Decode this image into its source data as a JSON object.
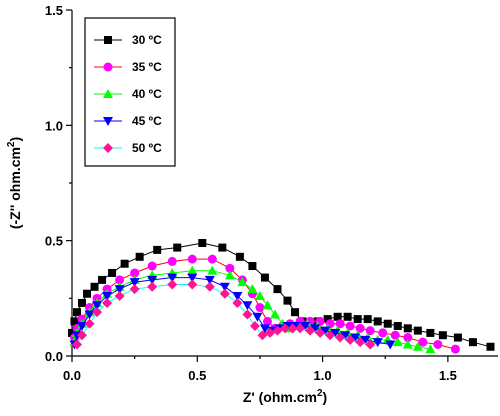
{
  "chart_data": {
    "type": "scatter",
    "title": "",
    "xlabel_base": "Z' (ohm.cm",
    "xlabel_sup": "2",
    "xlabel_end": ")",
    "ylabel_base": "(-Z'' ohm.cm",
    "ylabel_sup": "2",
    "ylabel_end": ")",
    "xlim": [
      0,
      1.7
    ],
    "ylim": [
      0,
      1.5
    ],
    "xticks": [
      0.0,
      0.5,
      1.0,
      1.5
    ],
    "xtick_labels": [
      "0.0",
      "0.5",
      "1.0",
      "1.5"
    ],
    "yticks": [
      0.0,
      0.5,
      1.0,
      1.5
    ],
    "ytick_labels": [
      "0.0",
      "0.5",
      "1.0",
      "1.5"
    ],
    "grid": false,
    "legend_position": "top-left",
    "series": [
      {
        "name": "30 ºC",
        "color": "#000000",
        "marker": "square",
        "x": [
          0.0,
          0.01,
          0.02,
          0.04,
          0.06,
          0.09,
          0.12,
          0.16,
          0.21,
          0.27,
          0.34,
          0.42,
          0.52,
          0.6,
          0.67,
          0.72,
          0.77,
          0.82,
          0.86,
          0.89,
          0.92,
          0.95,
          0.98,
          1.02,
          1.06,
          1.1,
          1.14,
          1.18,
          1.22,
          1.26,
          1.3,
          1.34,
          1.38,
          1.43,
          1.48,
          1.54,
          1.6,
          1.67
        ],
        "y": [
          0.1,
          0.15,
          0.19,
          0.23,
          0.27,
          0.3,
          0.33,
          0.36,
          0.4,
          0.43,
          0.46,
          0.47,
          0.49,
          0.47,
          0.43,
          0.39,
          0.34,
          0.29,
          0.24,
          0.19,
          0.15,
          0.14,
          0.15,
          0.16,
          0.17,
          0.17,
          0.16,
          0.16,
          0.15,
          0.14,
          0.13,
          0.12,
          0.11,
          0.1,
          0.09,
          0.08,
          0.06,
          0.04
        ]
      },
      {
        "name": "35 ºC",
        "color": "#ff00ff",
        "marker": "circle",
        "line_color": "#ff0000",
        "x": [
          0.01,
          0.02,
          0.04,
          0.07,
          0.1,
          0.14,
          0.19,
          0.25,
          0.32,
          0.4,
          0.48,
          0.56,
          0.63,
          0.68,
          0.72,
          0.75,
          0.78,
          0.81,
          0.84,
          0.87,
          0.91,
          0.95,
          0.99,
          1.03,
          1.07,
          1.11,
          1.15,
          1.19,
          1.24,
          1.29,
          1.34,
          1.4,
          1.46,
          1.53
        ],
        "y": [
          0.08,
          0.12,
          0.16,
          0.21,
          0.25,
          0.29,
          0.33,
          0.36,
          0.39,
          0.41,
          0.42,
          0.42,
          0.38,
          0.33,
          0.27,
          0.21,
          0.15,
          0.12,
          0.13,
          0.14,
          0.15,
          0.15,
          0.15,
          0.14,
          0.14,
          0.13,
          0.12,
          0.11,
          0.1,
          0.09,
          0.08,
          0.06,
          0.05,
          0.03
        ]
      },
      {
        "name": "40 ºC",
        "color": "#00ff00",
        "marker": "triangle-up",
        "x": [
          0.01,
          0.02,
          0.04,
          0.07,
          0.1,
          0.14,
          0.19,
          0.25,
          0.32,
          0.4,
          0.48,
          0.56,
          0.63,
          0.68,
          0.72,
          0.75,
          0.78,
          0.81,
          0.84,
          0.87,
          0.9,
          0.94,
          0.98,
          1.02,
          1.06,
          1.1,
          1.14,
          1.18,
          1.22,
          1.26,
          1.3,
          1.34,
          1.38,
          1.43
        ],
        "y": [
          0.06,
          0.1,
          0.14,
          0.19,
          0.23,
          0.27,
          0.3,
          0.33,
          0.35,
          0.36,
          0.37,
          0.37,
          0.35,
          0.32,
          0.29,
          0.26,
          0.22,
          0.18,
          0.14,
          0.12,
          0.13,
          0.14,
          0.13,
          0.12,
          0.11,
          0.1,
          0.09,
          0.08,
          0.07,
          0.07,
          0.06,
          0.05,
          0.04,
          0.03
        ]
      },
      {
        "name": "45 ºC",
        "color": "#0000ff",
        "marker": "triangle-down",
        "x": [
          0.01,
          0.02,
          0.04,
          0.07,
          0.1,
          0.14,
          0.19,
          0.25,
          0.32,
          0.4,
          0.48,
          0.55,
          0.61,
          0.66,
          0.7,
          0.74,
          0.77,
          0.8,
          0.83,
          0.86,
          0.89,
          0.93,
          0.97,
          1.01,
          1.05,
          1.09,
          1.13,
          1.17,
          1.22,
          1.27
        ],
        "y": [
          0.05,
          0.09,
          0.13,
          0.18,
          0.22,
          0.26,
          0.29,
          0.32,
          0.33,
          0.34,
          0.34,
          0.33,
          0.3,
          0.26,
          0.22,
          0.17,
          0.12,
          0.11,
          0.12,
          0.13,
          0.13,
          0.13,
          0.12,
          0.11,
          0.1,
          0.09,
          0.08,
          0.07,
          0.06,
          0.05
        ]
      },
      {
        "name": "50 ºC",
        "color": "#ff1493",
        "marker": "diamond",
        "line_color": "#00ffff",
        "x": [
          0.02,
          0.04,
          0.07,
          0.1,
          0.14,
          0.19,
          0.25,
          0.32,
          0.4,
          0.48,
          0.55,
          0.61,
          0.66,
          0.7,
          0.73,
          0.76,
          0.79,
          0.82,
          0.85,
          0.88,
          0.91,
          0.95,
          0.99,
          1.03,
          1.07,
          1.11,
          1.15,
          1.19
        ],
        "y": [
          0.05,
          0.09,
          0.14,
          0.19,
          0.23,
          0.26,
          0.29,
          0.3,
          0.31,
          0.31,
          0.3,
          0.27,
          0.23,
          0.18,
          0.13,
          0.09,
          0.1,
          0.11,
          0.12,
          0.12,
          0.12,
          0.11,
          0.1,
          0.09,
          0.08,
          0.07,
          0.06,
          0.05
        ]
      }
    ]
  }
}
